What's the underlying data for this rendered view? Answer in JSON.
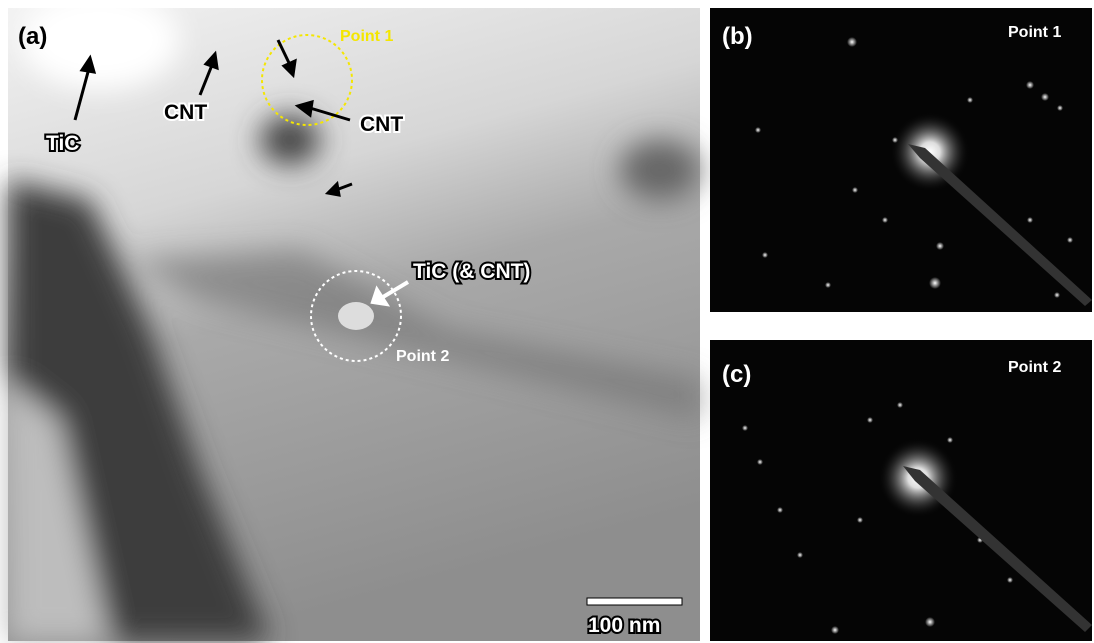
{
  "panel_a": {
    "label": "(a)",
    "point1": "Point 1",
    "tic": "TiC",
    "cnt_left": "CNT",
    "cnt_right": "CNT",
    "tic_cnt": "TiC (& CNT)",
    "point2": "Point 2",
    "scale_bar": "100 nm"
  },
  "panel_b": {
    "label": "(b)",
    "point": "Point 1"
  },
  "panel_c": {
    "label": "(c)",
    "point": "Point 2"
  }
}
